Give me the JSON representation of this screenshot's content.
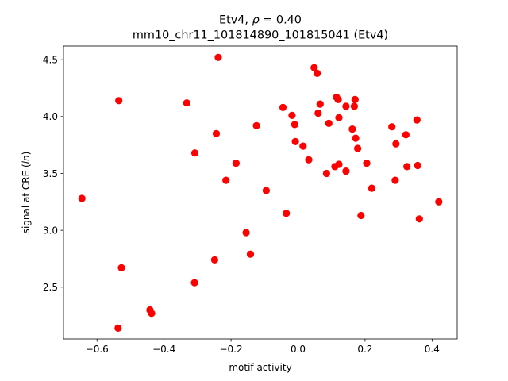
{
  "chart_data": {
    "type": "scatter",
    "title_line1_prefix": "Etv4, ",
    "title_line1_symbol": "ρ",
    "title_line1_value": " = 0.40",
    "title_line2": "mm10_chr11_101814890_101815041 (Etv4)",
    "xlabel": "motif activity",
    "ylabel_prefix": "signal at CRE (",
    "ylabel_italic": "ln",
    "ylabel_suffix": ")",
    "xlim": [
      -0.7,
      0.475
    ],
    "ylim": [
      2.045,
      4.62
    ],
    "xticks": [
      -0.6,
      -0.4,
      -0.2,
      0.0,
      0.2,
      0.4
    ],
    "xtick_labels": [
      "−0.6",
      "−0.4",
      "−0.2",
      "0.0",
      "0.2",
      "0.4"
    ],
    "yticks": [
      2.5,
      3.0,
      3.5,
      4.0,
      4.5
    ],
    "ytick_labels": [
      "2.5",
      "3.0",
      "3.5",
      "4.0",
      "4.5"
    ],
    "grid": false,
    "marker_color": "#ff0000",
    "points": [
      {
        "x": -0.645,
        "y": 3.28
      },
      {
        "x": -0.535,
        "y": 4.14
      },
      {
        "x": -0.527,
        "y": 2.67
      },
      {
        "x": -0.537,
        "y": 2.14
      },
      {
        "x": -0.442,
        "y": 2.3
      },
      {
        "x": -0.437,
        "y": 2.27
      },
      {
        "x": -0.332,
        "y": 4.12
      },
      {
        "x": -0.308,
        "y": 3.68
      },
      {
        "x": -0.309,
        "y": 2.54
      },
      {
        "x": -0.238,
        "y": 4.52
      },
      {
        "x": -0.244,
        "y": 3.85
      },
      {
        "x": -0.249,
        "y": 2.74
      },
      {
        "x": -0.215,
        "y": 3.44
      },
      {
        "x": -0.185,
        "y": 3.59
      },
      {
        "x": -0.155,
        "y": 2.98
      },
      {
        "x": -0.142,
        "y": 2.79
      },
      {
        "x": -0.124,
        "y": 3.92
      },
      {
        "x": -0.095,
        "y": 3.35
      },
      {
        "x": -0.045,
        "y": 4.08
      },
      {
        "x": -0.035,
        "y": 3.15
      },
      {
        "x": -0.018,
        "y": 4.01
      },
      {
        "x": -0.01,
        "y": 3.93
      },
      {
        "x": -0.008,
        "y": 3.78
      },
      {
        "x": 0.015,
        "y": 3.74
      },
      {
        "x": 0.032,
        "y": 3.62
      },
      {
        "x": 0.048,
        "y": 4.43
      },
      {
        "x": 0.057,
        "y": 4.38
      },
      {
        "x": 0.06,
        "y": 4.03
      },
      {
        "x": 0.066,
        "y": 4.11
      },
      {
        "x": 0.085,
        "y": 3.5
      },
      {
        "x": 0.092,
        "y": 3.94
      },
      {
        "x": 0.11,
        "y": 3.56
      },
      {
        "x": 0.115,
        "y": 4.17
      },
      {
        "x": 0.12,
        "y": 4.15
      },
      {
        "x": 0.122,
        "y": 3.58
      },
      {
        "x": 0.122,
        "y": 3.99
      },
      {
        "x": 0.143,
        "y": 4.09
      },
      {
        "x": 0.143,
        "y": 3.52
      },
      {
        "x": 0.162,
        "y": 3.89
      },
      {
        "x": 0.168,
        "y": 4.09
      },
      {
        "x": 0.17,
        "y": 4.15
      },
      {
        "x": 0.172,
        "y": 3.81
      },
      {
        "x": 0.178,
        "y": 3.72
      },
      {
        "x": 0.188,
        "y": 3.13
      },
      {
        "x": 0.205,
        "y": 3.59
      },
      {
        "x": 0.22,
        "y": 3.37
      },
      {
        "x": 0.28,
        "y": 3.91
      },
      {
        "x": 0.292,
        "y": 3.76
      },
      {
        "x": 0.29,
        "y": 3.44
      },
      {
        "x": 0.322,
        "y": 3.84
      },
      {
        "x": 0.325,
        "y": 3.56
      },
      {
        "x": 0.355,
        "y": 3.97
      },
      {
        "x": 0.357,
        "y": 3.57
      },
      {
        "x": 0.362,
        "y": 3.1
      },
      {
        "x": 0.42,
        "y": 3.25
      }
    ]
  }
}
